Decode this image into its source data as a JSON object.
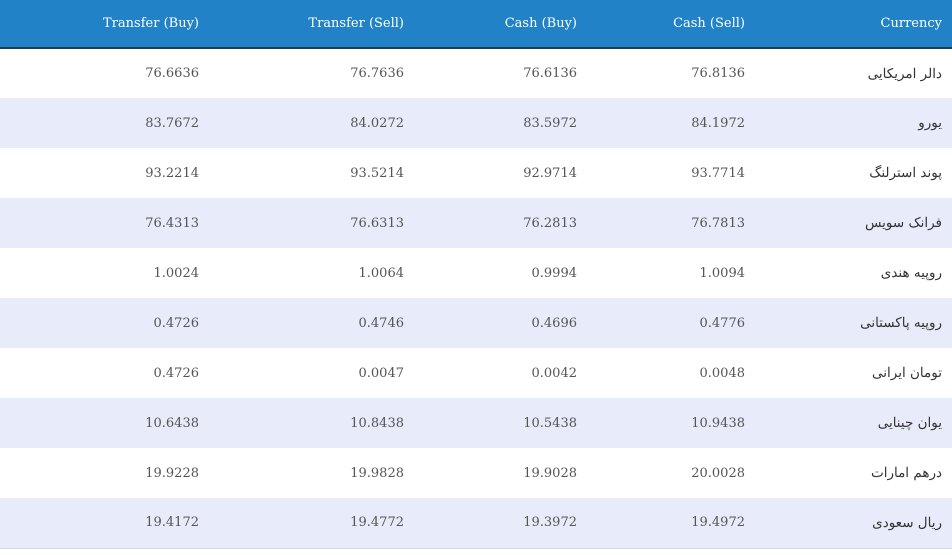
{
  "table": {
    "headers": {
      "transfer_buy": "Transfer (Buy)",
      "transfer_sell": "Transfer (Sell)",
      "cash_buy": "Cash (Buy)",
      "cash_sell": "Cash (Sell)",
      "currency": "Currency"
    },
    "rows": [
      {
        "transfer_buy": "76.6636",
        "transfer_sell": "76.7636",
        "cash_buy": "76.6136",
        "cash_sell": "76.8136",
        "currency": "دالر امریکایی"
      },
      {
        "transfer_buy": "83.7672",
        "transfer_sell": "84.0272",
        "cash_buy": "83.5972",
        "cash_sell": "84.1972",
        "currency": "یورو"
      },
      {
        "transfer_buy": "93.2214",
        "transfer_sell": "93.5214",
        "cash_buy": "92.9714",
        "cash_sell": "93.7714",
        "currency": "پوند استرلنگ"
      },
      {
        "transfer_buy": "76.4313",
        "transfer_sell": "76.6313",
        "cash_buy": "76.2813",
        "cash_sell": "76.7813",
        "currency": "فرانک سویس"
      },
      {
        "transfer_buy": "1.0024",
        "transfer_sell": "1.0064",
        "cash_buy": "0.9994",
        "cash_sell": "1.0094",
        "currency": "روپیه هندی"
      },
      {
        "transfer_buy": "0.4726",
        "transfer_sell": "0.4746",
        "cash_buy": "0.4696",
        "cash_sell": "0.4776",
        "currency": "روپیه پاکستانی"
      },
      {
        "transfer_buy": "0.4726",
        "transfer_sell": "0.0047",
        "cash_buy": "0.0042",
        "cash_sell": "0.0048",
        "currency": "تومان ایرانی"
      },
      {
        "transfer_buy": "10.6438",
        "transfer_sell": "10.8438",
        "cash_buy": "10.5438",
        "cash_sell": "10.9438",
        "currency": "یوان چینایی"
      },
      {
        "transfer_buy": "19.9228",
        "transfer_sell": "19.9828",
        "cash_buy": "19.9028",
        "cash_sell": "20.0028",
        "currency": "درهم امارات"
      },
      {
        "transfer_buy": "19.4172",
        "transfer_sell": "19.4772",
        "cash_buy": "19.3972",
        "cash_sell": "19.4972",
        "currency": "ریال سعودی"
      }
    ]
  },
  "colors": {
    "header_background": "#2182c7",
    "header_text": "#ffffff",
    "row_alt_background": "#e8ebfa",
    "row_background": "#ffffff"
  }
}
